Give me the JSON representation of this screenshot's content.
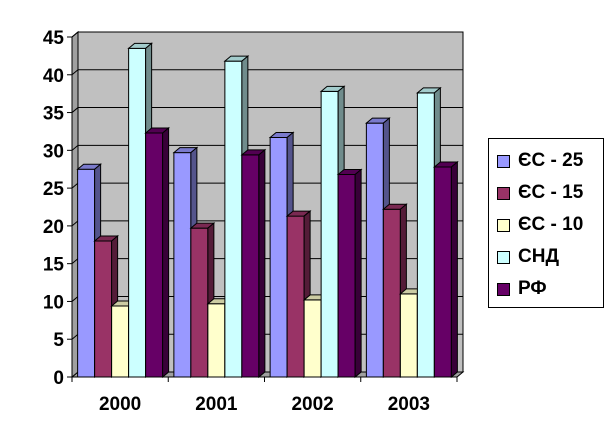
{
  "chart_data": {
    "type": "bar",
    "categories": [
      "2000",
      "2001",
      "2002",
      "2003"
    ],
    "series": [
      {
        "name": "ЄС - 25",
        "color": "#9999ff",
        "values": [
          27.5,
          29.7,
          31.7,
          33.6
        ]
      },
      {
        "name": "ЄС - 15",
        "color": "#993366",
        "values": [
          18.0,
          19.7,
          21.3,
          22.2
        ]
      },
      {
        "name": "ЄС - 10",
        "color": "#ffffcc",
        "values": [
          9.4,
          9.7,
          10.2,
          11.0
        ]
      },
      {
        "name": "СНД",
        "color": "#ccffff",
        "values": [
          43.5,
          41.8,
          37.8,
          37.6
        ]
      },
      {
        "name": "РФ",
        "color": "#660066",
        "values": [
          32.3,
          29.4,
          26.8,
          27.8
        ]
      }
    ],
    "y_ticks": [
      "0",
      "5",
      "10",
      "15",
      "20",
      "25",
      "30",
      "35",
      "40",
      "45"
    ],
    "ylim": [
      0,
      45
    ],
    "grid": true,
    "legend_position": "right",
    "wall_color": "#c0c0c0",
    "title": "",
    "xlabel": "",
    "ylabel": ""
  }
}
